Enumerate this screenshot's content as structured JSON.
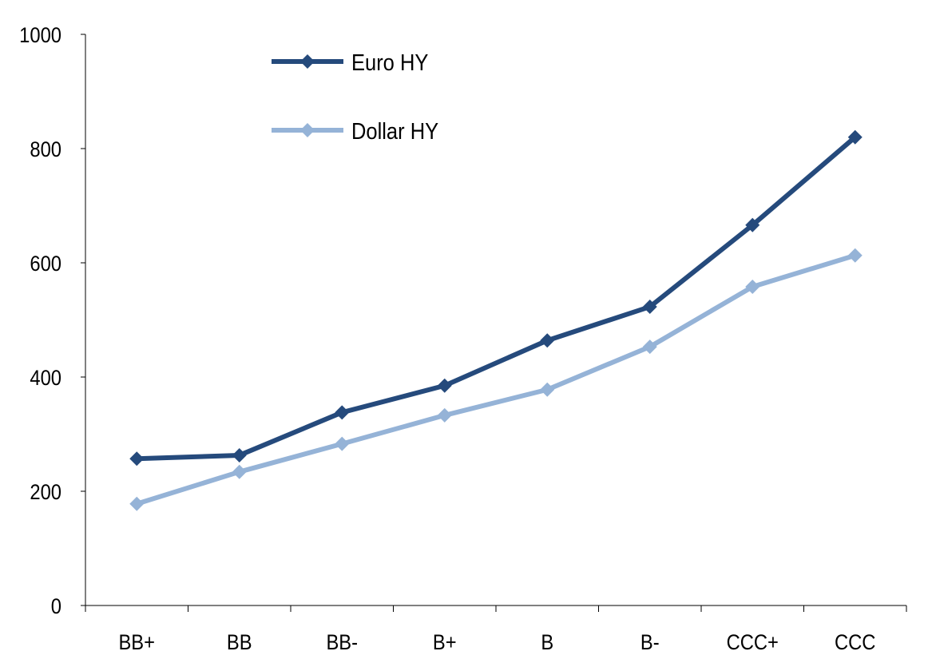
{
  "chart_data": {
    "type": "line",
    "title": "",
    "xlabel": "",
    "ylabel": "",
    "categories": [
      "BB+",
      "BB",
      "BB-",
      "B+",
      "B",
      "B-",
      "CCC+",
      "CCC"
    ],
    "ylim": [
      0,
      1000
    ],
    "yticks": [
      0,
      200,
      400,
      600,
      800,
      1000
    ],
    "grid": false,
    "legend_position": "top-left",
    "series": [
      {
        "name": "Euro HY",
        "color": "#254A7C",
        "marker": "diamond",
        "values": [
          257,
          263,
          338,
          385,
          464,
          523,
          666,
          820
        ]
      },
      {
        "name": "Dollar HY",
        "color": "#95B3D7",
        "marker": "diamond",
        "values": [
          178,
          234,
          283,
          333,
          378,
          453,
          558,
          613
        ]
      }
    ]
  }
}
